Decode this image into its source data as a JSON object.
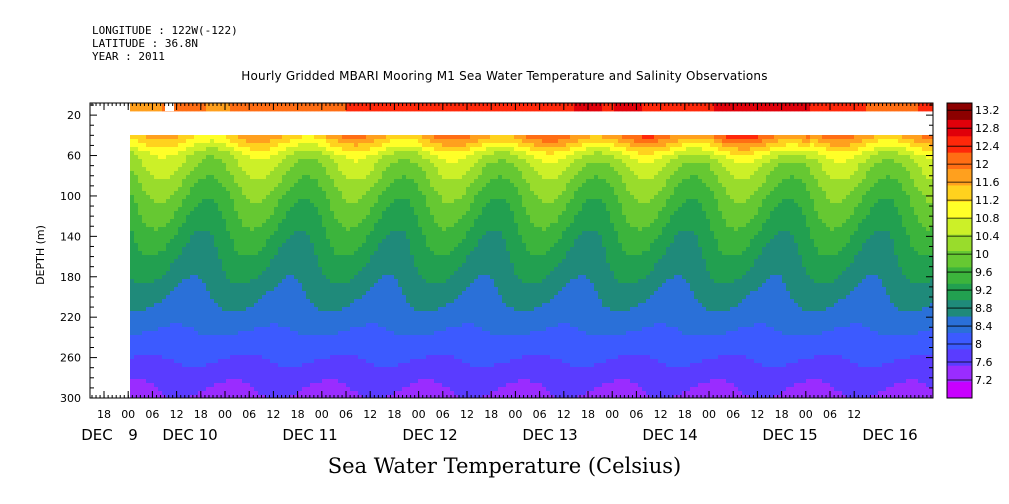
{
  "header": {
    "longitude": "LONGITUDE : 122W(-122)",
    "latitude": "LATITUDE : 36.8N",
    "year": "YEAR : 2011"
  },
  "chart_data": {
    "type": "heatmap",
    "title": "Hourly Gridded MBARI Mooring M1 Sea Water Temperature and Salinity Observations",
    "xlabel": "Sea Water Temperature (Celsius)",
    "ylabel": "DEPTH (m)",
    "y_ticks": [
      20,
      60,
      100,
      140,
      180,
      220,
      260,
      300
    ],
    "ylim": [
      300,
      8
    ],
    "x_hour_ticks": [
      "18",
      "00",
      "06",
      "12",
      "18",
      "00",
      "06",
      "12",
      "18",
      "00",
      "06",
      "12",
      "18",
      "00",
      "06",
      "12",
      "18",
      "00",
      "06",
      "12",
      "18",
      "00",
      "06",
      "12",
      "18",
      "00",
      "06",
      "12",
      "18",
      "00",
      "06",
      "12"
    ],
    "x_day_labels": [
      "DEC",
      "9",
      "DEC 10",
      "DEC 11",
      "DEC 12",
      "DEC 13",
      "DEC 14",
      "DEC 15",
      "DEC 16"
    ],
    "colorbar_levels": [
      "7.2",
      "7.6",
      "8",
      "8.4",
      "8.8",
      "9.2",
      "9.6",
      "10",
      "10.4",
      "10.8",
      "11.2",
      "11.6",
      "12",
      "12.4",
      "12.8",
      "13.2"
    ],
    "colorbar_colors": [
      "#c800ff",
      "#9a2cff",
      "#5a3cff",
      "#3c5aff",
      "#2a70d8",
      "#1f8a7a",
      "#22a050",
      "#3cb43c",
      "#66c832",
      "#99dc2c",
      "#ccf028",
      "#ffff28",
      "#ffd21e",
      "#ffa01e",
      "#ff6e14",
      "#ff280a",
      "#e0000a",
      "#8c0000"
    ],
    "depth_profile_typical": [
      {
        "depth": 12,
        "temp": 12.3
      },
      {
        "depth": 40,
        "temp": 11.6
      },
      {
        "depth": 60,
        "temp": 10.6
      },
      {
        "depth": 100,
        "temp": 9.9
      },
      {
        "depth": 140,
        "temp": 9.4
      },
      {
        "depth": 180,
        "temp": 9.0
      },
      {
        "depth": 220,
        "temp": 8.6
      },
      {
        "depth": 260,
        "temp": 8.1
      },
      {
        "depth": 300,
        "temp": 7.6
      }
    ],
    "surface_temp_by_day": [
      {
        "day": "DEC 9",
        "temp": 11.9
      },
      {
        "day": "DEC 10",
        "temp": 12.1
      },
      {
        "day": "DEC 11",
        "temp": 12.3
      },
      {
        "day": "DEC 12",
        "temp": 12.5
      },
      {
        "day": "DEC 13",
        "temp": 12.6
      },
      {
        "day": "DEC 14",
        "temp": 12.7
      },
      {
        "day": "DEC 15",
        "temp": 12.9
      },
      {
        "day": "DEC 16",
        "temp": 12.4
      }
    ]
  }
}
